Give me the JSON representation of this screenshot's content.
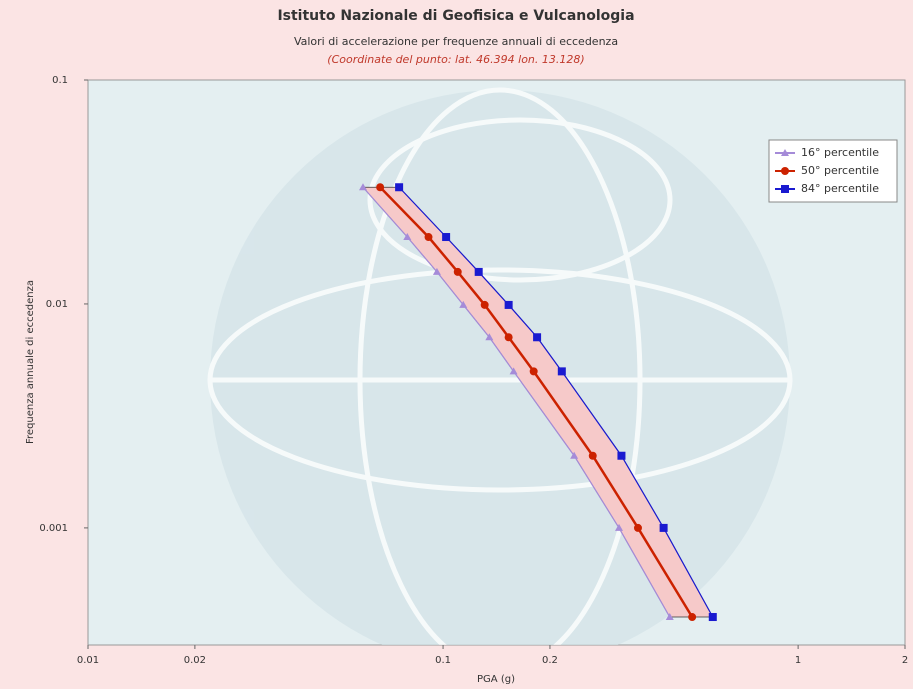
{
  "chart_data": {
    "type": "line",
    "title": "Istituto Nazionale di Geofisica e Vulcanologia",
    "subtitle": "Valori di accelerazione per frequenze annuali di eccedenza",
    "annotation": "(Coordinate del punto: lat. 46.394 lon. 13.128)",
    "x_label": "PGA (g)",
    "y_label": "Frequenza annuale di eccedenza",
    "log_x": true,
    "log_y": true,
    "xlim": [
      0.01,
      2
    ],
    "xticks": [
      0.01,
      0.02,
      0.1,
      0.2,
      1,
      2
    ],
    "ylim": [
      0.0003,
      0.1
    ],
    "yticks": [
      0.1,
      0.01,
      0.001
    ],
    "legend": "upper right",
    "band_color": "#f6c9c9",
    "series": [
      {
        "name": "16° percentile",
        "color": "#a58bd8",
        "marker": "triangle",
        "x": [
          0.0595,
          0.0793,
          0.0961,
          0.114,
          0.135,
          0.158,
          0.234,
          0.313,
          0.435
        ],
        "values": [
          0.0332,
          0.0199,
          0.0139,
          0.0099,
          0.0071,
          0.005,
          0.0021,
          0.001,
          0.0004
        ]
      },
      {
        "name": "50° percentile",
        "color": "#cc2200",
        "marker": "circle",
        "x": [
          0.0665,
          0.091,
          0.11,
          0.131,
          0.153,
          0.18,
          0.264,
          0.354,
          0.503
        ],
        "values": [
          0.0332,
          0.0199,
          0.0139,
          0.0099,
          0.0071,
          0.005,
          0.0021,
          0.001,
          0.0004
        ]
      },
      {
        "name": "84° percentile",
        "color": "#1a1ad0",
        "marker": "square",
        "x": [
          0.0752,
          0.102,
          0.126,
          0.153,
          0.184,
          0.216,
          0.318,
          0.418,
          0.575
        ],
        "values": [
          0.0332,
          0.0199,
          0.0139,
          0.0099,
          0.0071,
          0.005,
          0.0021,
          0.001,
          0.0004
        ]
      }
    ]
  }
}
